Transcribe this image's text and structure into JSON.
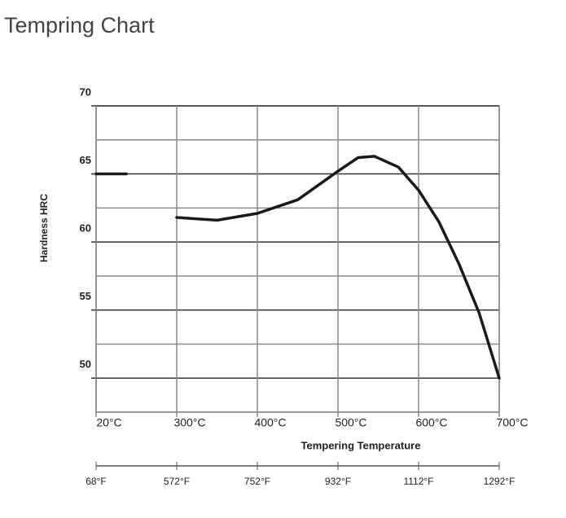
{
  "chart_data": {
    "type": "line",
    "title": "Tempring Chart",
    "ylabel": "Hardness HRC",
    "xlabel": "Tempering Temperature",
    "ylim": [
      47.5,
      70
    ],
    "yticks": [
      50,
      55,
      60,
      65,
      70
    ],
    "minor_yticks": [
      52.5,
      57.5,
      62.5,
      67.5
    ],
    "xlim": [
      20,
      700
    ],
    "xticks": [
      {
        "value": 20,
        "label": "20°C"
      },
      {
        "value": 300,
        "label": "300°C"
      },
      {
        "value": 400,
        "label": "400°C"
      },
      {
        "value": 500,
        "label": "500°C"
      },
      {
        "value": 600,
        "label": "600°C"
      },
      {
        "value": 700,
        "label": "700°C"
      }
    ],
    "x2ticks": [
      "68°F",
      "572°F",
      "752°F",
      "932°F",
      "1112°F",
      "1292°F"
    ],
    "grid": true,
    "series": [
      {
        "color": "#1a1a1a",
        "x": [
          20,
          125,
          null,
          300,
          350,
          400,
          450,
          500,
          525,
          545,
          575,
          600,
          625,
          650,
          675,
          700
        ],
        "values": [
          65,
          65,
          null,
          61.8,
          61.6,
          62.1,
          63.1,
          65.2,
          66.2,
          66.3,
          65.5,
          63.8,
          61.5,
          58.4,
          54.8,
          50
        ]
      }
    ]
  }
}
